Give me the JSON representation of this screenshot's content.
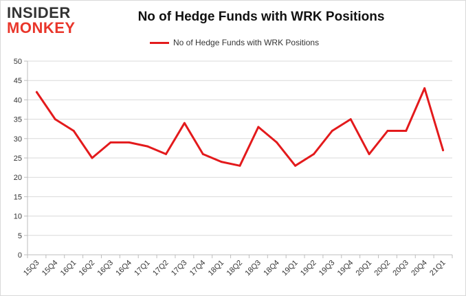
{
  "brand": {
    "line1": "INSIDER",
    "line2": "MONKEY",
    "text_color": "#333333",
    "accent_color": "#e9362b"
  },
  "chart_data": {
    "type": "line",
    "title": "No of Hedge Funds with WRK Positions",
    "xlabel": "",
    "ylabel": "",
    "categories": [
      "15Q3",
      "15Q4",
      "16Q1",
      "16Q2",
      "16Q3",
      "16Q4",
      "17Q1",
      "17Q2",
      "17Q3",
      "17Q4",
      "18Q1",
      "18Q2",
      "18Q3",
      "18Q4",
      "19Q1",
      "19Q2",
      "19Q3",
      "19Q4",
      "20Q1",
      "20Q2",
      "20Q3",
      "20Q4",
      "21Q1"
    ],
    "series": [
      {
        "name": "No of Hedge Funds with WRK Positions",
        "color": "#e31a1c",
        "values": [
          42,
          35,
          32,
          25,
          29,
          29,
          28,
          26,
          34,
          26,
          24,
          23,
          33,
          29,
          23,
          26,
          32,
          35,
          26,
          32,
          32,
          43,
          27
        ]
      }
    ],
    "ylim": [
      0,
      50
    ],
    "yticks": [
      0,
      5,
      10,
      15,
      20,
      25,
      30,
      35,
      40,
      45,
      50
    ],
    "grid": true,
    "legend": "top-center"
  }
}
